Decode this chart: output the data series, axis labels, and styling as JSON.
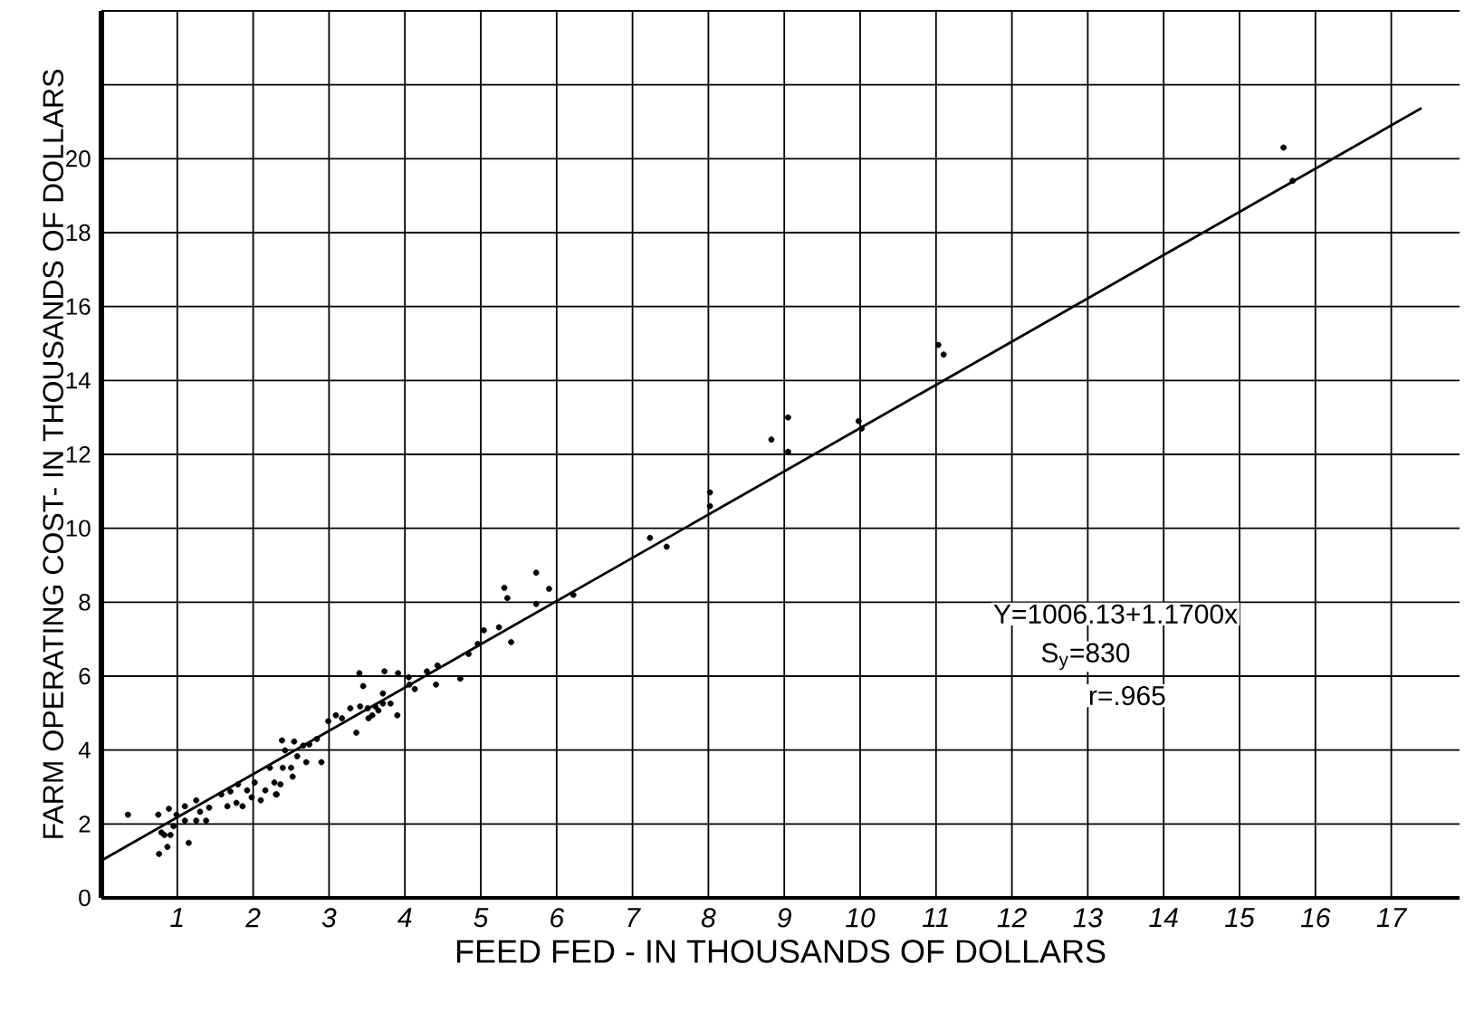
{
  "chart_data": {
    "type": "scatter",
    "xlabel": "FEED FED - IN THOUSANDS OF DOLLARS",
    "ylabel": "FARM OPERATING COST- IN THOUSANDS OF DOLLARS",
    "xlim": [
      0,
      17.9
    ],
    "ylim": [
      0,
      24
    ],
    "xticks": [
      1,
      2,
      3,
      4,
      5,
      6,
      7,
      8,
      9,
      10,
      11,
      12,
      13,
      14,
      15,
      16,
      17
    ],
    "yticks": [
      0,
      2,
      4,
      6,
      8,
      10,
      12,
      14,
      16,
      18,
      20,
      {
        "value": 22,
        "label": null
      }
    ],
    "grid": true,
    "annotations": [
      "Y=1006.13+1.1700x",
      "S$_{y}$=830",
      "r=.965"
    ],
    "series": [
      {
        "color": "#000000",
        "marker": "circle",
        "x": [
          0.35,
          0.75,
          0.76,
          0.87,
          0.79,
          0.83,
          0.91,
          0.95,
          0.89,
          0.99,
          1.1,
          1.15,
          1.1,
          1.25,
          1.3,
          1.25,
          1.38,
          1.42,
          1.58,
          1.66,
          1.7,
          1.8,
          1.78,
          1.86,
          1.92,
          1.98,
          2.02,
          2.1,
          2.16,
          2.22,
          2.28,
          2.31,
          2.36,
          2.38,
          2.42,
          2.39,
          2.5,
          2.52,
          2.3,
          2.58,
          2.54,
          2.66,
          2.74,
          2.7,
          2.84,
          2.9,
          2.99,
          3.09,
          3.17,
          3.28,
          3.36,
          3.4,
          3.45,
          3.41,
          3.51,
          3.52,
          3.57,
          3.61,
          3.65,
          3.71,
          3.73,
          3.71,
          3.81,
          3.9,
          3.91,
          4.05,
          4.06,
          4.13,
          4.29,
          4.43,
          4.41,
          4.73,
          4.84,
          4.96,
          5.04,
          5.24,
          5.4,
          5.31,
          5.35,
          5.73,
          5.73,
          5.9,
          6.22,
          7.23,
          7.45,
          8.02,
          8.02,
          8.83,
          9.05,
          9.05,
          9.98,
          10.02,
          11.03,
          11.1,
          15.58,
          15.7
        ],
        "values": [
          2.25,
          2.25,
          1.19,
          1.38,
          1.77,
          1.7,
          1.7,
          1.94,
          2.41,
          2.25,
          2.48,
          1.49,
          2.09,
          2.64,
          2.33,
          2.09,
          2.09,
          2.44,
          2.8,
          2.48,
          2.88,
          3.07,
          2.57,
          2.48,
          2.91,
          2.72,
          3.12,
          2.64,
          2.91,
          3.52,
          3.12,
          2.8,
          3.07,
          4.26,
          3.99,
          3.52,
          3.52,
          3.28,
          2.8,
          3.83,
          4.23,
          4.12,
          4.15,
          3.67,
          4.3,
          3.67,
          4.78,
          4.94,
          4.86,
          5.13,
          4.47,
          6.08,
          5.73,
          5.18,
          5.13,
          4.86,
          4.94,
          5.18,
          5.07,
          5.53,
          6.13,
          5.26,
          5.26,
          4.94,
          6.08,
          5.97,
          5.77,
          5.65,
          6.13,
          6.29,
          5.77,
          5.93,
          6.6,
          6.87,
          7.24,
          7.32,
          6.92,
          8.39,
          8.11,
          8.8,
          7.95,
          8.36,
          8.2,
          9.74,
          9.5,
          10.97,
          10.6,
          12.4,
          13.0,
          12.07,
          12.9,
          12.7,
          14.96,
          14.7,
          20.3,
          19.4
        ]
      },
      {
        "type": "line",
        "marker": "none",
        "color": "#000000",
        "x": [
          0,
          17.4
        ],
        "values": [
          1.01,
          21.37
        ]
      }
    ]
  }
}
